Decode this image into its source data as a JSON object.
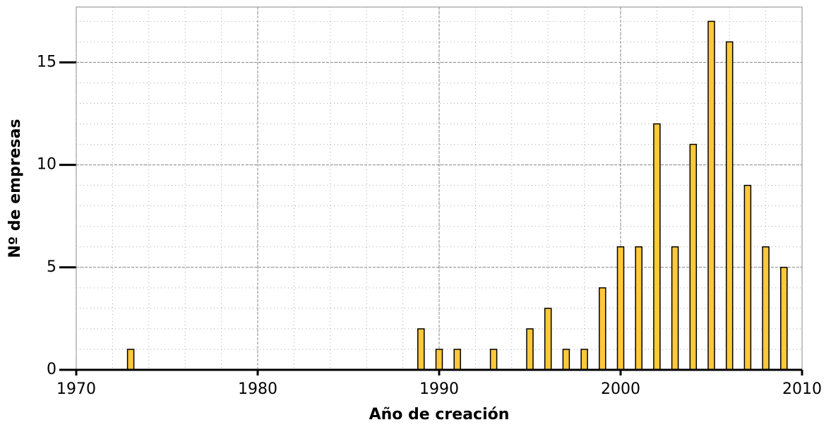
{
  "chart_data": {
    "type": "bar",
    "x_label": "Año de creación",
    "y_label": "Nº de empresas",
    "x": [
      1973,
      1989,
      1990,
      1991,
      1993,
      1995,
      1996,
      1997,
      1998,
      1999,
      2000,
      2001,
      2002,
      2003,
      2004,
      2005,
      2006,
      2007,
      2008,
      2009
    ],
    "values": [
      1,
      2,
      1,
      1,
      1,
      2,
      3,
      1,
      1,
      4,
      6,
      6,
      12,
      6,
      11,
      17,
      16,
      9,
      6,
      5
    ],
    "color": "#fdc938",
    "xlim": [
      1970,
      2010
    ],
    "xticks": [
      1970,
      1980,
      1990,
      2000,
      2010
    ],
    "ylim": [
      0,
      17.7
    ],
    "yticks": [
      0,
      5,
      10,
      15
    ],
    "grid": true,
    "x_minor_step": 2,
    "y_minor_step": 1
  }
}
